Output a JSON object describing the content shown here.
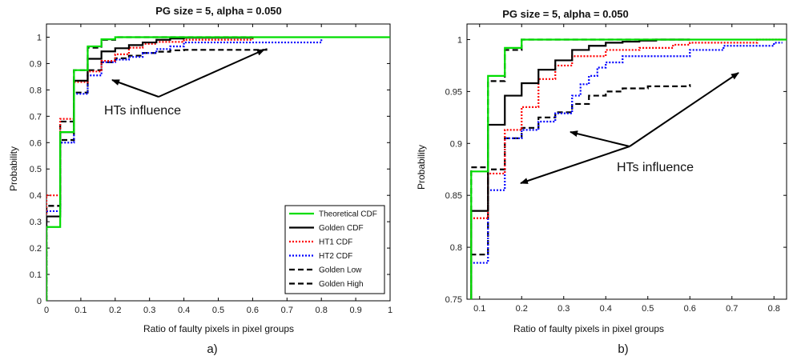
{
  "chart_data": [
    {
      "type": "line",
      "panel_label": "a)",
      "title": "PG size = 5, alpha = 0.050",
      "xlabel": "Ratio of faulty pixels in pixel groups",
      "ylabel": "Probability",
      "xlim": [
        0,
        1
      ],
      "ylim": [
        0,
        1.05
      ],
      "xticks": [
        "0",
        "0.1",
        "0.2",
        "0.3",
        "0.4",
        "0.5",
        "0.6",
        "0.7",
        "0.8",
        "0.9",
        "1"
      ],
      "yticks": [
        "0",
        "0.1",
        "0.2",
        "0.3",
        "0.4",
        "0.5",
        "0.6",
        "0.7",
        "0.8",
        "0.9",
        "1"
      ],
      "grid": false,
      "legend": "bottom-right",
      "annotation": "HTs influence",
      "series": [
        {
          "name": "Theoretical CDF",
          "color": "#00dd00",
          "style": "solid",
          "x": [
            0,
            0.04,
            0.08,
            0.12,
            0.16,
            0.2,
            1.0
          ],
          "y": [
            0.28,
            0.64,
            0.875,
            0.965,
            0.992,
            1.0,
            1.0
          ]
        },
        {
          "name": "Golden CDF",
          "color": "#000000",
          "style": "solid",
          "x": [
            0,
            0.04,
            0.08,
            0.12,
            0.16,
            0.2,
            0.24,
            0.28,
            0.32,
            0.36,
            0.4,
            0.6
          ],
          "y": [
            0.32,
            0.64,
            0.835,
            0.918,
            0.946,
            0.958,
            0.97,
            0.98,
            0.99,
            0.995,
            0.998,
            1.0
          ]
        },
        {
          "name": "HT1 CDF",
          "color": "#ff0000",
          "style": "dotted",
          "x": [
            0,
            0.04,
            0.08,
            0.12,
            0.16,
            0.2,
            0.24,
            0.28,
            0.32,
            0.4,
            0.6
          ],
          "y": [
            0.4,
            0.69,
            0.83,
            0.87,
            0.91,
            0.935,
            0.96,
            0.975,
            0.982,
            0.99,
            0.995
          ]
        },
        {
          "name": "HT2 CDF",
          "color": "#0000ff",
          "style": "dotted",
          "x": [
            0,
            0.04,
            0.08,
            0.12,
            0.16,
            0.2,
            0.24,
            0.28,
            0.32,
            0.36,
            0.4,
            0.8
          ],
          "y": [
            0.34,
            0.6,
            0.785,
            0.855,
            0.905,
            0.915,
            0.925,
            0.94,
            0.955,
            0.965,
            0.98,
            0.995
          ]
        },
        {
          "name": "Golden Low",
          "color": "#000000",
          "style": "dashed",
          "x": [
            0,
            0.04,
            0.08,
            0.12,
            0.16,
            0.2,
            0.24,
            0.28,
            0.32,
            0.36,
            0.4,
            0.64
          ],
          "y": [
            0.36,
            0.61,
            0.79,
            0.875,
            0.905,
            0.92,
            0.93,
            0.94,
            0.945,
            0.95,
            0.952,
            0.958
          ]
        },
        {
          "name": "Golden High",
          "color": "#000000",
          "style": "dashed",
          "x": [
            0,
            0.04,
            0.08,
            0.12,
            0.16,
            0.2,
            0.6
          ],
          "y": [
            0.36,
            0.68,
            0.875,
            0.96,
            0.99,
            1.0,
            1.0
          ]
        }
      ]
    },
    {
      "type": "line",
      "panel_label": "b)",
      "title": "PG size = 5, alpha = 0.050",
      "xlabel": "Ratio of faulty pixels in pixel groups",
      "ylabel": "Probability",
      "xlim": [
        0.07,
        0.83
      ],
      "ylim": [
        0.75,
        1.015
      ],
      "xticks": [
        "0.1",
        "0.2",
        "0.3",
        "0.4",
        "0.5",
        "0.6",
        "0.7",
        "0.8"
      ],
      "yticks": [
        "0.75",
        "0.8",
        "0.85",
        "0.9",
        "0.95",
        "1"
      ],
      "grid": false,
      "legend": "none",
      "annotation": "HTs influence",
      "series": [
        {
          "name": "Theoretical CDF",
          "color": "#00dd00",
          "style": "solid",
          "x": [
            0.08,
            0.12,
            0.16,
            0.2,
            0.83
          ],
          "y": [
            0.873,
            0.965,
            0.992,
            1.0,
            1.0
          ]
        },
        {
          "name": "Golden CDF",
          "color": "#000000",
          "style": "solid",
          "x": [
            0.08,
            0.12,
            0.16,
            0.2,
            0.24,
            0.28,
            0.32,
            0.36,
            0.4,
            0.44,
            0.48,
            0.52,
            0.6
          ],
          "y": [
            0.835,
            0.918,
            0.946,
            0.958,
            0.971,
            0.98,
            0.99,
            0.994,
            0.997,
            0.998,
            0.999,
            1.0,
            1.0
          ]
        },
        {
          "name": "HT1 CDF",
          "color": "#ff0000",
          "style": "dotted",
          "x": [
            0.08,
            0.12,
            0.16,
            0.2,
            0.24,
            0.28,
            0.32,
            0.36,
            0.4,
            0.44,
            0.48,
            0.56,
            0.6,
            0.76,
            0.82
          ],
          "y": [
            0.828,
            0.871,
            0.913,
            0.935,
            0.962,
            0.975,
            0.984,
            0.984,
            0.99,
            0.99,
            0.992,
            0.995,
            0.997,
            1.0,
            1.0
          ]
        },
        {
          "name": "HT2 CDF",
          "color": "#0000ff",
          "style": "dotted",
          "x": [
            0.08,
            0.12,
            0.16,
            0.2,
            0.24,
            0.28,
            0.32,
            0.34,
            0.36,
            0.38,
            0.4,
            0.44,
            0.48,
            0.6,
            0.68,
            0.8,
            0.82
          ],
          "y": [
            0.785,
            0.855,
            0.905,
            0.913,
            0.921,
            0.929,
            0.946,
            0.957,
            0.965,
            0.973,
            0.978,
            0.984,
            0.984,
            0.99,
            0.994,
            0.997,
            0.997
          ]
        },
        {
          "name": "Golden Low",
          "color": "#000000",
          "style": "dashed",
          "x": [
            0.08,
            0.12,
            0.16,
            0.2,
            0.24,
            0.28,
            0.32,
            0.36,
            0.4,
            0.44,
            0.5,
            0.6
          ],
          "y": [
            0.793,
            0.875,
            0.905,
            0.915,
            0.925,
            0.93,
            0.938,
            0.946,
            0.95,
            0.953,
            0.955,
            0.957
          ]
        },
        {
          "name": "Golden High",
          "color": "#000000",
          "style": "dashed",
          "x": [
            0.08,
            0.12,
            0.16,
            0.2,
            0.6
          ],
          "y": [
            0.877,
            0.96,
            0.99,
            1.0,
            1.0
          ]
        }
      ]
    }
  ]
}
